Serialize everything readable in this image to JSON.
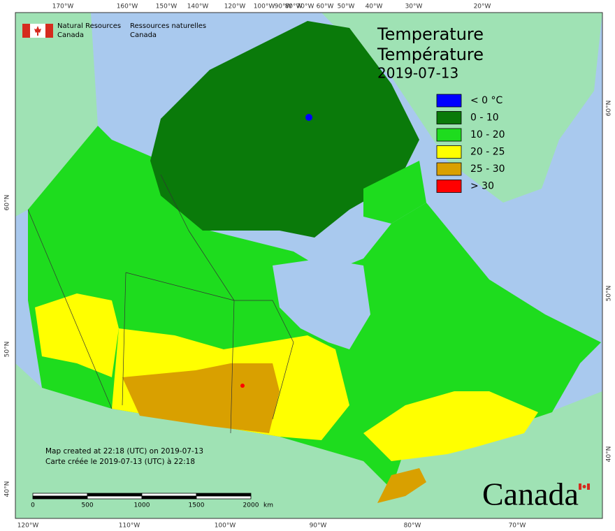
{
  "header": {
    "agency_en": [
      "Natural Resources",
      "Canada"
    ],
    "agency_fr": [
      "Ressources naturelles",
      "Canada"
    ]
  },
  "title": {
    "en": "Temperature",
    "fr": "Température",
    "date": "2019-07-13"
  },
  "legend": [
    {
      "label": "< 0 °C",
      "color": "#0000ff"
    },
    {
      "label": "0 - 10",
      "color": "#0a7a0a"
    },
    {
      "label": "10 - 20",
      "color": "#1edc1e"
    },
    {
      "label": "20 - 25",
      "color": "#ffff00"
    },
    {
      "label": "25 - 30",
      "color": "#d9a000"
    },
    {
      "label": "> 30",
      "color": "#ff0000"
    }
  ],
  "graticule": {
    "top": [
      "170°W",
      "160°W",
      "150°W",
      "140°W",
      "120°W",
      "100°W",
      "90°W",
      "80°W",
      "70°W",
      "60°W",
      "50°W",
      "40°W",
      "30°W",
      "20°W"
    ],
    "bottom": [
      "120°W",
      "110°W",
      "100°W",
      "90°W",
      "80°W",
      "70°W"
    ],
    "left": [
      "60°N",
      "50°N",
      "40°N"
    ],
    "right": [
      "60°N",
      "50°N",
      "40°N"
    ]
  },
  "scale_bar": {
    "ticks": [
      0,
      500,
      1000,
      1500,
      2000
    ],
    "unit": "km"
  },
  "credits": [
    "Map created at 22:18 (UTC) on 2019-07-13",
    "Carte créée le 2019-07-13 (UTC) à 22:18"
  ],
  "wordmark": "Canada"
}
